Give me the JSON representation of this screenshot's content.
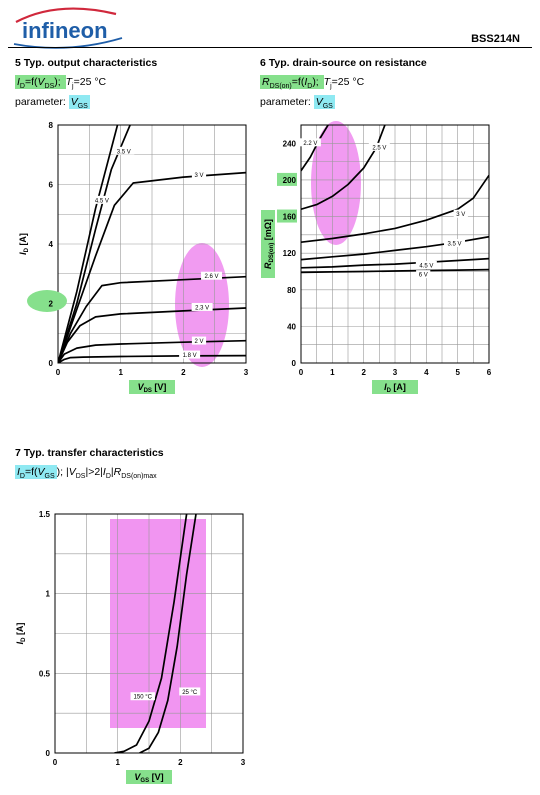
{
  "header": {
    "brand": "infineon",
    "part_number": "BSS214N"
  },
  "sections": {
    "s5": {
      "title": "5 Typ. output characteristics",
      "eq_a": "I",
      "eq_a_sub": "D",
      "eq_b": "=f(",
      "eq_c": "V",
      "eq_c_sub": "DS",
      "eq_d": "); ",
      "eq_e": "T",
      "eq_e_sub": "j",
      "eq_f": "=25 °C",
      "param_label": "parameter: ",
      "param_v": "V",
      "param_sub": "GS"
    },
    "s6": {
      "title": "6 Typ. drain-source on resistance",
      "eq_a": "R",
      "eq_a_sub": "DS(on)",
      "eq_b": "=f(",
      "eq_c": "I",
      "eq_c_sub": "D",
      "eq_d": "); ",
      "eq_e": "T",
      "eq_e_sub": "j",
      "eq_f": "=25 °C",
      "param_label": "parameter: ",
      "param_v": "V",
      "param_sub": "GS"
    },
    "s7": {
      "title": "7 Typ. transfer characteristics",
      "eq_a": "I",
      "eq_a_sub": "D",
      "eq_b": "=f(",
      "eq_c": "V",
      "eq_c_sub": "GS",
      "eq_d": "); |",
      "eq_e": "V",
      "eq_e_sub": "DS",
      "eq_f": "|>2|",
      "eq_g": "I",
      "eq_g_sub": "D",
      "eq_h": "|",
      "eq_i": "R",
      "eq_i_sub": "DS(on)max"
    }
  },
  "colors": {
    "highlight_green": "#86e08c",
    "highlight_cyan": "#8fe9f2",
    "highlight_magenta": "#ee82ee",
    "logo_blue": "#1f5ea8",
    "logo_red": "#d0283c",
    "grid": "#999999"
  },
  "chart_data": [
    {
      "type": "line",
      "xlabel": "V",
      "xlabel_sub": "DS",
      "xunit": "[V]",
      "ylabel": "I",
      "ylabel_sub": "D",
      "yunit": "[A]",
      "xlim": [
        0,
        3
      ],
      "ylim": [
        0,
        8
      ],
      "xticks": [
        0,
        1,
        2,
        3
      ],
      "yticks": [
        0,
        2,
        4,
        6,
        8
      ],
      "grid": true,
      "series": [
        {
          "name": "1.8 V",
          "label_at": [
            2.1,
            0.25
          ],
          "x": [
            0,
            0.1,
            0.2,
            0.4,
            1,
            2,
            3
          ],
          "y": [
            0,
            0.12,
            0.18,
            0.2,
            0.22,
            0.24,
            0.25
          ]
        },
        {
          "name": "2 V",
          "label_at": [
            2.25,
            0.72
          ],
          "x": [
            0,
            0.1,
            0.3,
            0.6,
            1,
            2,
            3
          ],
          "y": [
            0,
            0.3,
            0.5,
            0.6,
            0.64,
            0.7,
            0.75
          ]
        },
        {
          "name": "2.3 V",
          "label_at": [
            2.3,
            1.85
          ],
          "x": [
            0,
            0.15,
            0.35,
            0.6,
            1,
            2,
            3
          ],
          "y": [
            0,
            0.7,
            1.25,
            1.55,
            1.65,
            1.75,
            1.85
          ]
        },
        {
          "name": "2.6 V",
          "label_at": [
            2.45,
            2.9
          ],
          "x": [
            0,
            0.2,
            0.45,
            0.7,
            1,
            2,
            3
          ],
          "y": [
            0,
            1,
            1.9,
            2.6,
            2.7,
            2.8,
            2.9
          ]
        },
        {
          "name": "3 V",
          "label_at": [
            2.25,
            6.3
          ],
          "x": [
            0,
            0.3,
            0.6,
            0.9,
            1.2,
            2,
            3
          ],
          "y": [
            0,
            1.8,
            3.6,
            5.3,
            6.05,
            6.25,
            6.4
          ]
        },
        {
          "name": "3.5 V",
          "label_at": [
            1.05,
            7.1
          ],
          "x": [
            0,
            0.3,
            0.6,
            0.85,
            1.15
          ],
          "y": [
            0,
            2,
            4.5,
            6.5,
            8
          ]
        },
        {
          "name": "4.5 V",
          "label_at": [
            0.7,
            5.45
          ],
          "x": [
            0,
            0.3,
            0.6,
            0.95
          ],
          "y": [
            0,
            2.4,
            5.2,
            8
          ]
        }
      ],
      "series_labels_extra": []
    },
    {
      "type": "line",
      "xlabel": "I",
      "xlabel_sub": "D",
      "xunit": "[A]",
      "ylabel": "R",
      "ylabel_sub": "DS(on)",
      "yunit": "[mΩ]",
      "xlim": [
        0,
        6
      ],
      "ylim": [
        0,
        260
      ],
      "xticks": [
        0,
        1,
        2,
        3,
        4,
        5,
        6
      ],
      "yticks": [
        0,
        40,
        80,
        120,
        160,
        200,
        240
      ],
      "grid": true,
      "series": [
        {
          "name": "2.2 V",
          "label_at": [
            0.3,
            240
          ],
          "x": [
            0,
            0.3,
            0.6,
            0.9
          ],
          "y": [
            210,
            225,
            245,
            262
          ]
        },
        {
          "name": "2.5 V",
          "label_at": [
            2.5,
            235
          ],
          "x": [
            0,
            0.5,
            1,
            1.5,
            2,
            2.4,
            2.7
          ],
          "y": [
            168,
            173,
            182,
            195,
            213,
            235,
            262
          ]
        },
        {
          "name": "3 V",
          "label_at": [
            5.1,
            162
          ],
          "x": [
            0,
            1,
            2,
            3,
            4,
            5,
            5.5,
            6
          ],
          "y": [
            132,
            136,
            141,
            147,
            156,
            168,
            180,
            205
          ]
        },
        {
          "name": "3.5 V",
          "label_at": [
            4.9,
            130
          ],
          "x": [
            0,
            1,
            2,
            3,
            4,
            5,
            6
          ],
          "y": [
            113,
            116,
            119,
            123,
            127,
            132,
            138
          ]
        },
        {
          "name": "4.5 V",
          "label_at": [
            4,
            106
          ],
          "x": [
            0,
            1,
            2,
            3,
            4,
            5,
            6
          ],
          "y": [
            104,
            105,
            107,
            108,
            110,
            112,
            114
          ]
        },
        {
          "name": "6 V",
          "label_at": [
            3.9,
            96
          ],
          "x": [
            0,
            1,
            2,
            3,
            4,
            5,
            6
          ],
          "y": [
            99,
            99.5,
            100,
            100.5,
            101,
            101.5,
            102
          ]
        }
      ]
    },
    {
      "type": "line",
      "xlabel": "V",
      "xlabel_sub": "GS",
      "xunit": "[V]",
      "ylabel": "I",
      "ylabel_sub": "D",
      "yunit": "[A]",
      "xlim": [
        0,
        3
      ],
      "ylim": [
        0,
        1.5
      ],
      "xticks": [
        0,
        1,
        2,
        3
      ],
      "yticks": [
        0,
        0.5,
        1,
        1.5
      ],
      "ytick_labels": [
        "0",
        "0.5",
        "1",
        "1.5"
      ],
      "grid": true,
      "series": [
        {
          "name": "150 °C",
          "label_at": [
            1.4,
            0.35
          ],
          "x": [
            0.95,
            1.1,
            1.3,
            1.5,
            1.7,
            1.9,
            2.1
          ],
          "y": [
            0,
            0.01,
            0.05,
            0.2,
            0.47,
            0.95,
            1.5
          ]
        },
        {
          "name": "25 °C",
          "label_at": [
            2.15,
            0.38
          ],
          "x": [
            1.35,
            1.5,
            1.65,
            1.8,
            1.95,
            2.1,
            2.25
          ],
          "y": [
            0,
            0.03,
            0.13,
            0.33,
            0.67,
            1.12,
            1.5
          ]
        }
      ]
    }
  ]
}
